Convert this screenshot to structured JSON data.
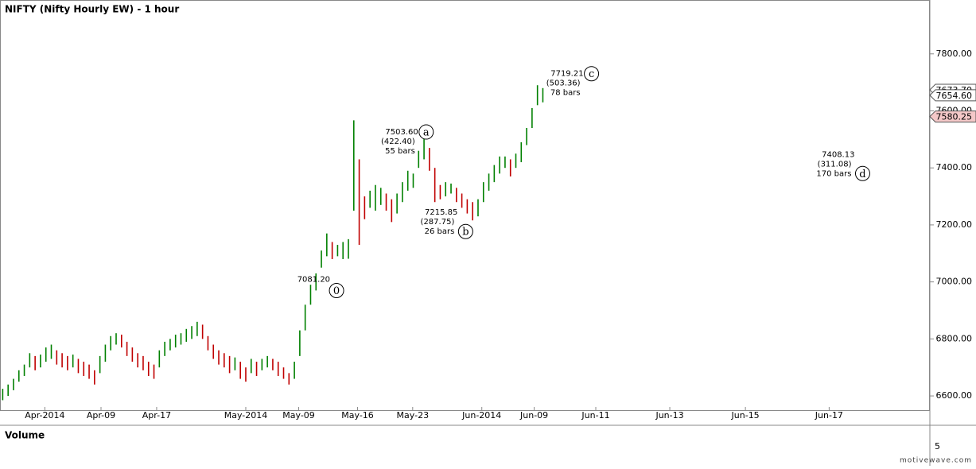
{
  "chart_data": {
    "type": "range_bar",
    "title": "NIFTY (Nifty Hourly EW) - 1 hour",
    "low": [
      6585,
      6600,
      6620,
      6650,
      6670,
      6700,
      6690,
      6700,
      6720,
      6730,
      6710,
      6700,
      6690,
      6700,
      6680,
      6670,
      6660,
      6640,
      6680,
      6720,
      6760,
      6780,
      6770,
      6740,
      6720,
      6700,
      6690,
      6670,
      6660,
      6700,
      6740,
      6760,
      6770,
      6780,
      6790,
      6800,
      6810,
      6800,
      6760,
      6730,
      6710,
      6700,
      6680,
      6690,
      6660,
      6650,
      6680,
      6670,
      6690,
      6700,
      6690,
      6670,
      6660,
      6640,
      6660,
      6740,
      6830,
      6920,
      6970,
      7050,
      7090,
      7080,
      7090,
      7080,
      7081.2,
      7250,
      7130,
      7220,
      7260,
      7250,
      7270,
      7250,
      7210,
      7240,
      7280,
      7320,
      7330,
      7400,
      7430,
      7390,
      7280,
      7290,
      7300,
      7310,
      7280,
      7260,
      7240,
      7215.85,
      7230,
      7280,
      7320,
      7350,
      7380,
      7400,
      7370,
      7400,
      7420,
      7480,
      7540,
      7620,
      7630
    ],
    "high": [
      6625,
      6640,
      6660,
      6690,
      6710,
      6750,
      6740,
      6745,
      6770,
      6780,
      6760,
      6750,
      6740,
      6745,
      6730,
      6720,
      6710,
      6690,
      6740,
      6780,
      6810,
      6820,
      6815,
      6790,
      6770,
      6750,
      6740,
      6720,
      6710,
      6760,
      6790,
      6800,
      6815,
      6820,
      6835,
      6845,
      6860,
      6850,
      6810,
      6780,
      6760,
      6750,
      6740,
      6735,
      6720,
      6700,
      6730,
      6720,
      6730,
      6740,
      6730,
      6720,
      6700,
      6680,
      6720,
      6830,
      6920,
      6990,
      7030,
      7110,
      7170,
      7140,
      7130,
      7140,
      7150,
      7567,
      7430,
      7300,
      7320,
      7340,
      7330,
      7310,
      7290,
      7310,
      7350,
      7390,
      7380,
      7460,
      7503.6,
      7470,
      7400,
      7340,
      7350,
      7345,
      7330,
      7310,
      7290,
      7280,
      7290,
      7350,
      7380,
      7410,
      7440,
      7440,
      7430,
      7450,
      7490,
      7540,
      7610,
      7690,
      7680
    ],
    "up_color": "#008000",
    "down_color": "#c00000",
    "xlim": [
      -0.5,
      171.5
    ],
    "ylim": [
      6550,
      7989
    ],
    "xticks": [
      {
        "value": 7.8,
        "label": "Apr-2014"
      },
      {
        "value": 18.2,
        "label": "Apr-09"
      },
      {
        "value": 28.5,
        "label": "Apr-17"
      },
      {
        "value": 45,
        "label": "May-2014"
      },
      {
        "value": 54.8,
        "label": "May-09"
      },
      {
        "value": 65.7,
        "label": "May-16"
      },
      {
        "value": 75.9,
        "label": "May-23"
      },
      {
        "value": 88.7,
        "label": "Jun-2014"
      },
      {
        "value": 98.4,
        "label": "Jun-09"
      },
      {
        "value": 109.8,
        "label": "Jun-11"
      },
      {
        "value": 123.5,
        "label": "Jun-13"
      },
      {
        "value": 137.5,
        "label": "Jun-15"
      },
      {
        "value": 153,
        "label": "Jun-17"
      }
    ],
    "yticks": [
      {
        "value": 6600,
        "label": "6600.00"
      },
      {
        "value": 6800,
        "label": "6800.00"
      },
      {
        "value": 7000,
        "label": "7000.00"
      },
      {
        "value": 7200,
        "label": "7200.00"
      },
      {
        "value": 7400,
        "label": "7400.00"
      },
      {
        "value": 7600,
        "label": "7600.00"
      },
      {
        "value": 7800,
        "label": "7800.00"
      }
    ],
    "price_markers": [
      {
        "value": 7673.7,
        "label": "7673.70",
        "color": "#ffffff"
      },
      {
        "value": 7654.6,
        "label": "7654.60",
        "color": "#ffffff"
      },
      {
        "value": 7580.25,
        "label": "7580.25",
        "color": "#f4c8c8"
      }
    ],
    "waves": [
      {
        "label": "0",
        "x": 61.8,
        "price": {
          "value": 7081.2,
          "label": "7081.20"
        }
      },
      {
        "label": "a",
        "x": 78.4,
        "price": {
          "value": 7503.6,
          "label": "7503.60"
        },
        "change": "(422.40)",
        "bars": "55 bars"
      },
      {
        "label": "b",
        "x": 85.7,
        "price": {
          "value": 7215.85,
          "label": "7215.85"
        },
        "change": "(287.75)",
        "bars": "26 bars"
      },
      {
        "label": "c",
        "x": 109,
        "price": {
          "value": 7719.21,
          "label": "7719.21"
        },
        "change": "(503.36)",
        "bars": "78 bars"
      },
      {
        "label": "d",
        "x": 159.2,
        "price": {
          "value": 7408.13,
          "label": "7408.13"
        },
        "change": "(311.08)",
        "bars": "170 bars"
      }
    ],
    "volume_label": "Volume",
    "volume_yticks": [
      5
    ],
    "watermark": "motivewave.com"
  }
}
